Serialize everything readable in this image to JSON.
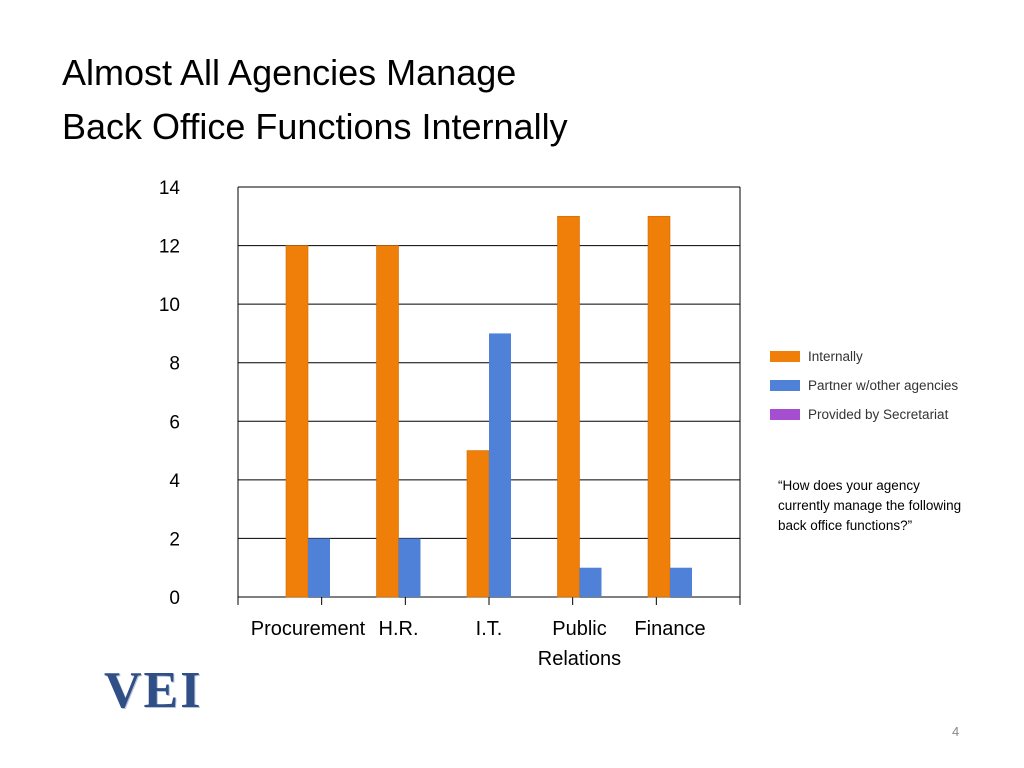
{
  "slide": {
    "title_line1": "Almost All Agencies Manage",
    "title_line2": "Back Office Functions Internally",
    "note": "“How does your agency currently manage the following back office functions?”",
    "logo_text": "VEI",
    "page_number": "4"
  },
  "chart_data": {
    "type": "bar",
    "categories": [
      "Procurement",
      "H.R.",
      "I.T.",
      "Public Relations",
      "Finance"
    ],
    "category_lines": [
      [
        "Procurement"
      ],
      [
        "H.R."
      ],
      [
        "I.T."
      ],
      [
        "Public",
        "Relations"
      ],
      [
        "Finance"
      ]
    ],
    "series": [
      {
        "name": "Internally",
        "color": "#f07f09",
        "values": [
          12,
          12,
          5,
          13,
          13
        ]
      },
      {
        "name": "Partner w/other agencies",
        "color": "#4f81d9",
        "values": [
          2,
          2,
          9,
          1,
          1
        ]
      },
      {
        "name": "Provided by Secretariat",
        "color": "#a54fd0",
        "values": [
          0,
          0,
          0,
          0,
          0
        ]
      }
    ],
    "y_ticks": [
      0,
      2,
      4,
      6,
      8,
      10,
      12,
      14
    ],
    "ylim": [
      0,
      14
    ],
    "grid": true,
    "legend_position": "right"
  }
}
